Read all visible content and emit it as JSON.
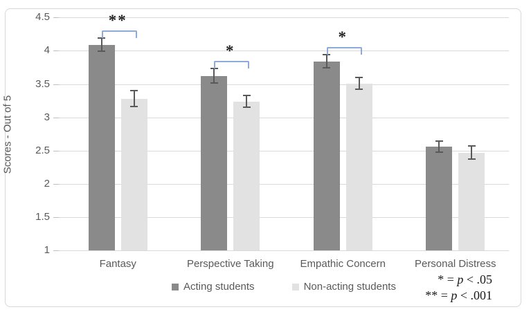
{
  "chart_data": {
    "type": "bar",
    "title": "",
    "xlabel": "",
    "ylabel": "Scores - Out of 5",
    "ylim": [
      1,
      4.5
    ],
    "ytick_step": 0.5,
    "grid": true,
    "legend_position": "bottom",
    "categories": [
      "Fantasy",
      "Perspective Taking",
      "Empathic Concern",
      "Personal Distress"
    ],
    "series": [
      {
        "name": "Acting students",
        "color": "#8a8a8a",
        "values": [
          4.09,
          3.62,
          3.84,
          2.56
        ],
        "errors": [
          0.11,
          0.12,
          0.11,
          0.09
        ]
      },
      {
        "name": "Non-acting students",
        "color": "#e2e2e2",
        "values": [
          3.28,
          3.24,
          3.51,
          2.47
        ],
        "errors": [
          0.13,
          0.1,
          0.1,
          0.11
        ]
      }
    ],
    "significance": [
      {
        "category_index": 0,
        "label": "**"
      },
      {
        "category_index": 1,
        "label": "*"
      },
      {
        "category_index": 2,
        "label": "*"
      }
    ],
    "annotations": [
      {
        "prefix": "* = ",
        "italic": "p",
        "suffix": " < .05"
      },
      {
        "prefix": "** = ",
        "italic": "p",
        "suffix": " < .001"
      }
    ],
    "colors": {
      "gridline": "#d9d9d9",
      "axis_text": "#595959",
      "error_bar": "#595959",
      "sig_bracket": "#8eaadb",
      "sig_stars": "#1f1f1f"
    }
  }
}
